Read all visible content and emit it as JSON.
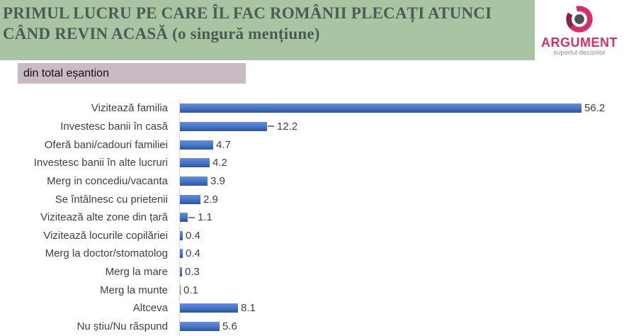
{
  "header": {
    "title": "PRIMUL LUCRU PE CARE ÎL FAC ROMÂNII PLECAȚI ATUNCI CÂND REVIN ACASĂ (o singură mențiune)",
    "bg_color": "#a9c4a3",
    "text_color": "#4d5c53"
  },
  "logo": {
    "brand": "ARGUMENT",
    "tagline": "suportul deciziilor",
    "brand_color": "#d62d6e",
    "ring_dark_color": "#8f2147",
    "center_dot_color": "#4f4f4f",
    "icon": "argument-swirl-ring-icon"
  },
  "badge": {
    "label": "din total eșantion",
    "bg_color": "#c9bac6"
  },
  "chart_data": {
    "type": "bar",
    "orientation": "horizontal",
    "title": "PRIMUL LUCRU PE CARE ÎL FAC ROMÂNII PLECAȚI ATUNCI CÂND REVIN ACASĂ (o singură mențiune)",
    "subtitle": "din total eșantion",
    "xlabel": "",
    "ylabel": "",
    "xlim": [
      0,
      60
    ],
    "grid": false,
    "legend": false,
    "value_labels": true,
    "bar_color": "#4472c4",
    "categories": [
      "Vizitează familia",
      "Investesc banii în casă",
      "Oferă bani/cadouri familiei",
      "Investesc banii în alte lucruri",
      "Merg in concediu/vacanta",
      "Se întâlnesc cu prietenii",
      "Vizitează alte zone din țară",
      "Vizitează locurile copilăriei",
      "Merg la doctor/stomatolog",
      "Merg la mare",
      "Merg la munte",
      "Altceva",
      "Nu știu/Nu răspund"
    ],
    "values": [
      56.2,
      12.2,
      4.7,
      4.2,
      3.9,
      2.9,
      1.1,
      0.4,
      0.4,
      0.3,
      0.1,
      8.1,
      5.6
    ],
    "leader_lines": [
      false,
      true,
      false,
      false,
      false,
      false,
      true,
      false,
      false,
      false,
      false,
      false,
      false
    ]
  }
}
